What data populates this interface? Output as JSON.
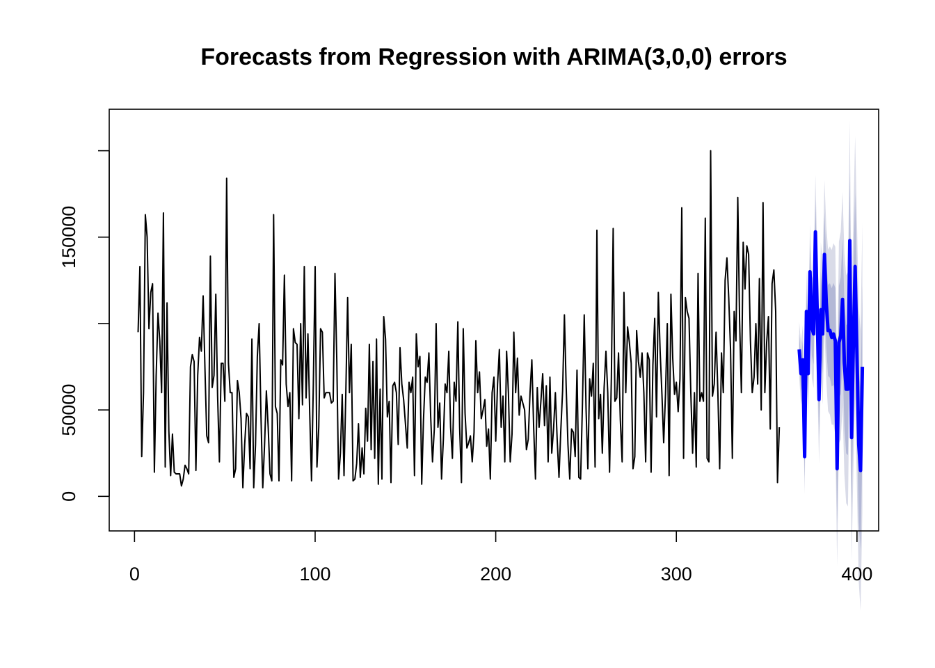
{
  "chart_data": {
    "type": "line",
    "title": "Forecasts from Regression with ARIMA(3,0,0) errors",
    "xlabel": "",
    "ylabel": "",
    "xlim": [
      -14,
      412
    ],
    "ylim": [
      -20000,
      224000
    ],
    "x_ticks": [
      0,
      100,
      200,
      300,
      400
    ],
    "y_ticks": [
      0,
      50000,
      150000
    ],
    "y_tick_marks": [
      0,
      50000,
      100000,
      150000,
      200000
    ],
    "grid": false,
    "legend": "none",
    "colors": {
      "history": "#000000",
      "forecast": "#0000ff",
      "interval_80": "#b3b8d6",
      "interval_95": "#d9dbe8"
    },
    "history_start": 2,
    "history": [
      95000,
      133000,
      23000,
      60000,
      163000,
      150000,
      97000,
      118000,
      123000,
      14000,
      70000,
      106000,
      90000,
      60000,
      164000,
      17000,
      112000,
      38000,
      12000,
      36000,
      14000,
      13000,
      13000,
      13000,
      6000,
      10000,
      18000,
      16000,
      13000,
      75000,
      82000,
      78000,
      15000,
      70000,
      92000,
      84000,
      116000,
      74000,
      35000,
      31000,
      139000,
      63000,
      70000,
      117000,
      58000,
      20000,
      77000,
      77000,
      55000,
      184000,
      77000,
      60000,
      60000,
      11000,
      16000,
      67000,
      60000,
      45000,
      5000,
      30000,
      48000,
      46000,
      16000,
      91000,
      5000,
      30000,
      81000,
      100000,
      47000,
      5000,
      30000,
      61000,
      40000,
      13000,
      9000,
      163000,
      52000,
      48000,
      9000,
      79000,
      76000,
      128000,
      65000,
      52000,
      60000,
      9000,
      97000,
      89000,
      88000,
      45000,
      100000,
      53000,
      133000,
      57000,
      94000,
      48000,
      9000,
      65000,
      133000,
      17000,
      40000,
      97000,
      95000,
      57000,
      60000,
      60000,
      60000,
      54000,
      55000,
      129000,
      79000,
      10000,
      25000,
      59000,
      12000,
      60000,
      115000,
      60000,
      88000,
      9000,
      10000,
      19000,
      42000,
      11000,
      28000,
      13000,
      51000,
      32000,
      88000,
      27000,
      78000,
      22000,
      91000,
      7000,
      62000,
      10000,
      104000,
      91000,
      46000,
      55000,
      8000,
      64000,
      66000,
      60000,
      30000,
      86000,
      65000,
      56000,
      42000,
      28000,
      66000,
      60000,
      69000,
      12000,
      94000,
      75000,
      81000,
      7000,
      44000,
      69000,
      66000,
      83000,
      46000,
      20000,
      39000,
      100000,
      40000,
      54000,
      10000,
      33000,
      65000,
      60000,
      84000,
      40000,
      22000,
      66000,
      55000,
      101000,
      40000,
      8000,
      97000,
      48000,
      28000,
      31000,
      35000,
      20000,
      37000,
      90000,
      60000,
      72000,
      45000,
      50000,
      56000,
      29000,
      39000,
      10000,
      60000,
      69000,
      32000,
      65000,
      85000,
      40000,
      58000,
      20000,
      84000,
      60000,
      20000,
      36000,
      95000,
      60000,
      80000,
      47000,
      58000,
      54000,
      50000,
      27000,
      33000,
      60000,
      79000,
      40000,
      10000,
      63000,
      40000,
      55000,
      71000,
      41000,
      64000,
      20000,
      69000,
      25000,
      39000,
      60000,
      33000,
      11000,
      38000,
      61000,
      105000,
      64000,
      30000,
      10000,
      39000,
      37000,
      23000,
      73000,
      11000,
      10000,
      53000,
      105000,
      51000,
      16000,
      68000,
      58000,
      77000,
      17000,
      154000,
      45000,
      59000,
      25000,
      63000,
      84000,
      60000,
      14000,
      69000,
      155000,
      55000,
      57000,
      83000,
      44000,
      20000,
      118000,
      60000,
      98000,
      89000,
      77000,
      16000,
      23000,
      96000,
      78000,
      69000,
      83000,
      60000,
      20000,
      83000,
      79000,
      14000,
      76000,
      103000,
      46000,
      118000,
      84000,
      59000,
      31000,
      59000,
      100000,
      12000,
      117000,
      80000,
      59000,
      66000,
      49000,
      68000,
      167000,
      22000,
      115000,
      107000,
      103000,
      60000,
      25000,
      60000,
      17000,
      129000,
      55000,
      60000,
      55000,
      161000,
      22000,
      20000,
      200000,
      58000,
      65000,
      95000,
      60000,
      16000,
      83000,
      60000,
      125000,
      138000,
      115000,
      85000,
      22000,
      107000,
      90000,
      173000,
      102000,
      60000,
      147000,
      120000,
      145000,
      140000,
      90000,
      60000,
      69000,
      100000,
      65000,
      126000,
      50000,
      170000,
      60000,
      89000,
      104000,
      39000,
      123000,
      131000,
      107000,
      8000,
      40000
    ],
    "forecast_start": 368,
    "forecast": [
      85000,
      71000,
      79000,
      23000,
      107000,
      71000,
      130000,
      98000,
      94000,
      153000,
      106000,
      56000,
      108000,
      94000,
      140000,
      112000,
      96000,
      96000,
      92000,
      94000,
      90000,
      16000,
      89000,
      93000,
      114000,
      77000,
      62000,
      62000,
      148000,
      34000,
      90000,
      133000,
      82000,
      30000,
      15000,
      75000
    ],
    "interval_width_80": 9000,
    "interval_width_95": 16000
  }
}
